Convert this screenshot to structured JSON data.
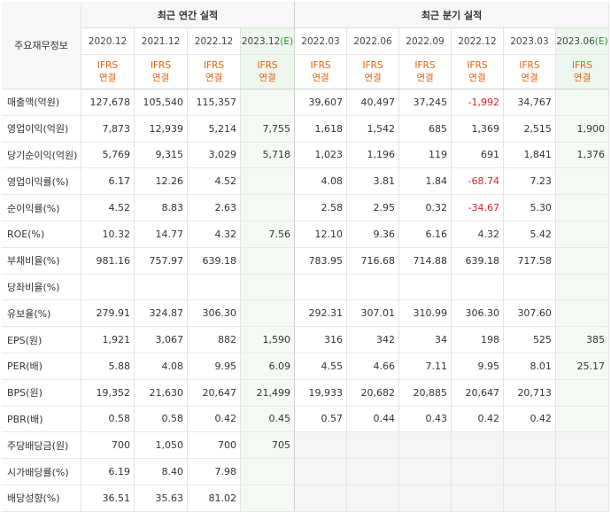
{
  "header": {
    "label_col": "주요재무정보",
    "group_annual": "최근 연간 실적",
    "group_quarter": "최근 분기 실적",
    "periods": [
      "2020.12",
      "2021.12",
      "2022.12",
      "2023.12",
      "2022.03",
      "2022.06",
      "2022.09",
      "2022.12",
      "2023.03",
      "2023.06"
    ],
    "estimate_mark": "(E)",
    "ifrs_line1": "IFRS",
    "ifrs_line2": "연결"
  },
  "rows": [
    {
      "label": "매출액(억원)",
      "values": [
        "127,678",
        "105,540",
        "115,357",
        "",
        "39,607",
        "40,497",
        "37,245",
        "-1,992",
        "34,767",
        ""
      ]
    },
    {
      "label": "영업이익(억원)",
      "values": [
        "7,873",
        "12,939",
        "5,214",
        "7,755",
        "1,618",
        "1,542",
        "685",
        "1,369",
        "2,515",
        "1,900"
      ]
    },
    {
      "label": "당기순이익(억원)",
      "values": [
        "5,769",
        "9,315",
        "3,029",
        "5,718",
        "1,023",
        "1,196",
        "119",
        "691",
        "1,841",
        "1,376"
      ]
    },
    {
      "label": "영업이익률(%)",
      "values": [
        "6.17",
        "12.26",
        "4.52",
        "",
        "4.08",
        "3.81",
        "1.84",
        "-68.74",
        "7.23",
        ""
      ]
    },
    {
      "label": "순이익률(%)",
      "values": [
        "4.52",
        "8.83",
        "2.63",
        "",
        "2.58",
        "2.95",
        "0.32",
        "-34.67",
        "5.30",
        ""
      ]
    },
    {
      "label": "ROE(%)",
      "values": [
        "10.32",
        "14.77",
        "4.32",
        "7.56",
        "12.10",
        "9.36",
        "6.16",
        "4.32",
        "5.42",
        ""
      ]
    },
    {
      "label": "부채비율(%)",
      "values": [
        "981.16",
        "757.97",
        "639.18",
        "",
        "783.95",
        "716.68",
        "714.88",
        "639.18",
        "717.58",
        ""
      ]
    },
    {
      "label": "당좌비율(%)",
      "values": [
        "",
        "",
        "",
        "",
        "",
        "",
        "",
        "",
        "",
        ""
      ]
    },
    {
      "label": "유보율(%)",
      "values": [
        "279.91",
        "324.87",
        "306.30",
        "",
        "292.31",
        "307.01",
        "310.99",
        "306.30",
        "307.60",
        ""
      ]
    },
    {
      "label": "EPS(원)",
      "values": [
        "1,921",
        "3,067",
        "882",
        "1,590",
        "316",
        "342",
        "34",
        "198",
        "525",
        "385"
      ]
    },
    {
      "label": "PER(배)",
      "values": [
        "5.88",
        "4.08",
        "9.95",
        "6.09",
        "4.55",
        "4.66",
        "7.11",
        "9.95",
        "8.01",
        "25.17"
      ]
    },
    {
      "label": "BPS(원)",
      "values": [
        "19,352",
        "21,630",
        "20,647",
        "21,499",
        "19,933",
        "20,682",
        "20,885",
        "20,647",
        "20,713",
        ""
      ]
    },
    {
      "label": "PBR(배)",
      "values": [
        "0.58",
        "0.58",
        "0.42",
        "0.45",
        "0.57",
        "0.44",
        "0.43",
        "0.42",
        "0.42",
        ""
      ]
    },
    {
      "label": "주당배당금(원)",
      "values": [
        "700",
        "1,050",
        "700",
        "705",
        "",
        "",
        "",
        "",
        "",
        ""
      ]
    },
    {
      "label": "시가배당률(%)",
      "values": [
        "6.19",
        "8.40",
        "7.98",
        "",
        "",
        "",
        "",
        "",
        "",
        ""
      ]
    },
    {
      "label": "배당성향(%)",
      "values": [
        "36.51",
        "35.63",
        "81.02",
        "",
        "",
        "",
        "",
        "",
        "",
        ""
      ]
    }
  ]
}
